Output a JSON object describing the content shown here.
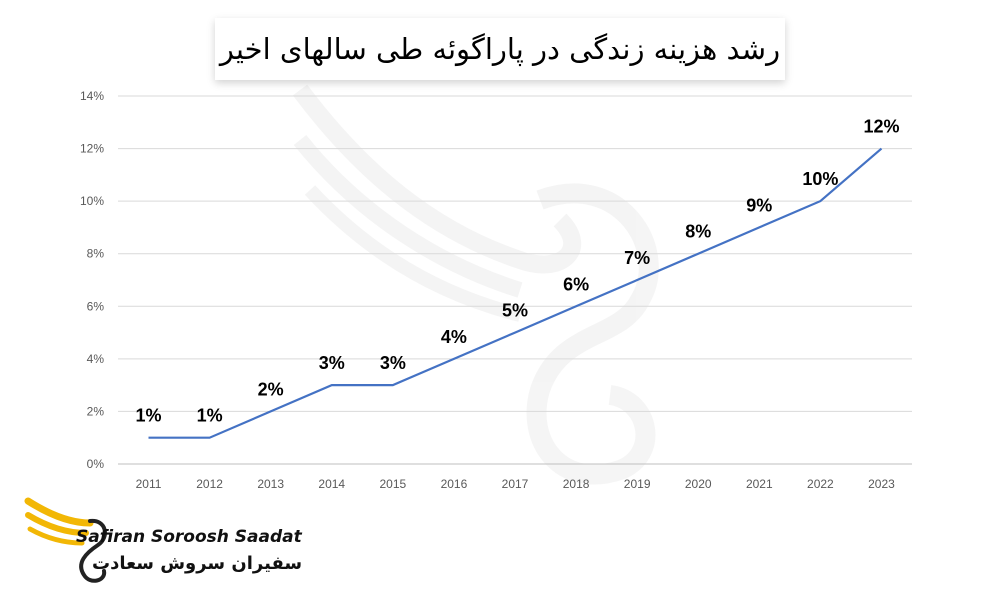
{
  "header": {
    "title": "رشد هزینه زندگی در پاراگوئه طی سالهای اخیر"
  },
  "brand": {
    "name_en": "Safiran Soroosh Saadat",
    "name_fa": "سفیران سروش سعادت"
  },
  "colors": {
    "line": "#4472c4",
    "grid": "#d9d9d9",
    "logo_gold": "#f2b705"
  },
  "chart_data": {
    "type": "line",
    "title": "رشد هزینه زندگی در پاراگوئه طی سالهای اخیر",
    "x": [
      "2011",
      "2012",
      "2013",
      "2014",
      "2015",
      "2016",
      "2017",
      "2018",
      "2019",
      "2020",
      "2021",
      "2022",
      "2023"
    ],
    "series": [
      {
        "values": [
          1,
          1,
          2,
          3,
          3,
          4,
          5,
          6,
          7,
          8,
          9,
          10,
          12
        ]
      }
    ],
    "data_labels": [
      "1%",
      "1%",
      "2%",
      "3%",
      "3%",
      "4%",
      "5%",
      "6%",
      "7%",
      "8%",
      "9%",
      "10%",
      "12%"
    ],
    "y_ticks": [
      "0%",
      "2%",
      "4%",
      "6%",
      "8%",
      "10%",
      "12%",
      "14%"
    ],
    "ylim": [
      0,
      14
    ],
    "grid": true,
    "legend": "none",
    "xlabel": "",
    "ylabel": ""
  }
}
